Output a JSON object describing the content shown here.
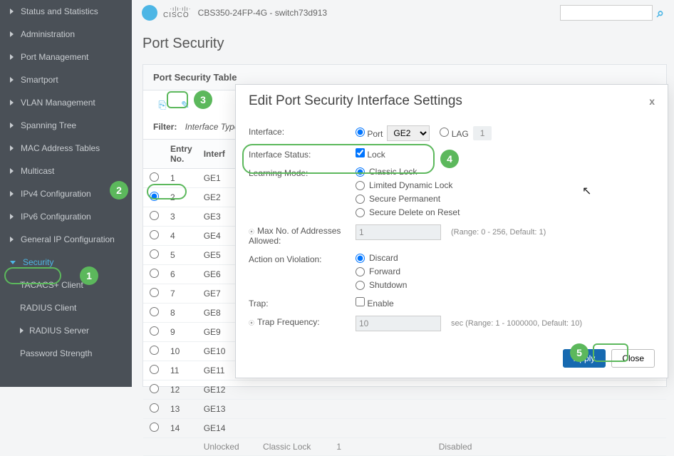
{
  "topbar": {
    "brand_tag": "·ı|ı·ı|ı·",
    "brand_name": "CISCO",
    "device": "CBS350-24FP-4G - switch73d913",
    "search_placeholder": "",
    "search_icon": "⌕"
  },
  "sidebar": {
    "items": [
      {
        "label": "Status and Statistics"
      },
      {
        "label": "Administration"
      },
      {
        "label": "Port Management"
      },
      {
        "label": "Smartport"
      },
      {
        "label": "VLAN Management"
      },
      {
        "label": "Spanning Tree"
      },
      {
        "label": "MAC Address Tables"
      },
      {
        "label": "Multicast"
      },
      {
        "label": "IPv4 Configuration"
      },
      {
        "label": "IPv6 Configuration"
      },
      {
        "label": "General IP Configuration"
      }
    ],
    "security": {
      "label": "Security"
    },
    "subitems": [
      {
        "label": "TACACS+ Client"
      },
      {
        "label": "RADIUS Client"
      },
      {
        "label": "RADIUS Server",
        "caret": true
      },
      {
        "label": "Password Strength"
      }
    ]
  },
  "page": {
    "title": "Port Security",
    "panel_title": "Port Security Table"
  },
  "tools": {
    "copy": "⎘",
    "edit": "✎"
  },
  "filter": {
    "label": "Filter:",
    "field": "Interface Type"
  },
  "table": {
    "headers": [
      "",
      "Entry No.",
      "Interf"
    ],
    "rows": [
      {
        "n": "1",
        "if": "GE1",
        "selected": false
      },
      {
        "n": "2",
        "if": "GE2",
        "selected": true
      },
      {
        "n": "3",
        "if": "GE3",
        "selected": false
      },
      {
        "n": "4",
        "if": "GE4",
        "selected": false
      },
      {
        "n": "5",
        "if": "GE5",
        "selected": false
      },
      {
        "n": "6",
        "if": "GE6",
        "selected": false
      },
      {
        "n": "7",
        "if": "GE7",
        "selected": false
      },
      {
        "n": "8",
        "if": "GE8",
        "selected": false
      },
      {
        "n": "9",
        "if": "GE9",
        "selected": false
      },
      {
        "n": "10",
        "if": "GE10",
        "selected": false
      },
      {
        "n": "11",
        "if": "GE11",
        "selected": false
      },
      {
        "n": "12",
        "if": "GE12",
        "selected": false
      },
      {
        "n": "13",
        "if": "GE13",
        "selected": false
      },
      {
        "n": "14",
        "if": "GE14",
        "selected": false
      }
    ],
    "bottom": {
      "status": "Unlocked",
      "mode": "Classic Lock",
      "max": "1",
      "trap": "Disabled"
    }
  },
  "modal": {
    "title": "Edit Port Security Interface Settings",
    "close": "x",
    "interface_label": "Interface:",
    "port_label": "Port",
    "port_value": "GE2",
    "lag_label": "LAG",
    "lag_value": "1",
    "ifstatus_label": "Interface Status:",
    "ifstatus_opt": "Lock",
    "learning_label": "Learning Mode:",
    "learning_opts": [
      "Classic Lock",
      "Limited Dynamic Lock",
      "Secure Permanent",
      "Secure Delete on Reset"
    ],
    "maxaddr_label": "Max No. of Addresses Allowed:",
    "maxaddr_value": "1",
    "maxaddr_help": "(Range: 0 - 256, Default: 1)",
    "action_label": "Action on Violation:",
    "action_opts": [
      "Discard",
      "Forward",
      "Shutdown"
    ],
    "trap_label": "Trap:",
    "trap_opt": "Enable",
    "trapfreq_label": "Trap Frequency:",
    "trapfreq_value": "10",
    "trapfreq_help": "sec (Range: 1 - 1000000, Default: 10)",
    "apply": "Apply",
    "close_btn": "Close"
  },
  "prefix": {
    "bullet": "⦿"
  },
  "steps": {
    "1": "1",
    "2": "2",
    "3": "3",
    "4": "4",
    "5": "5"
  }
}
